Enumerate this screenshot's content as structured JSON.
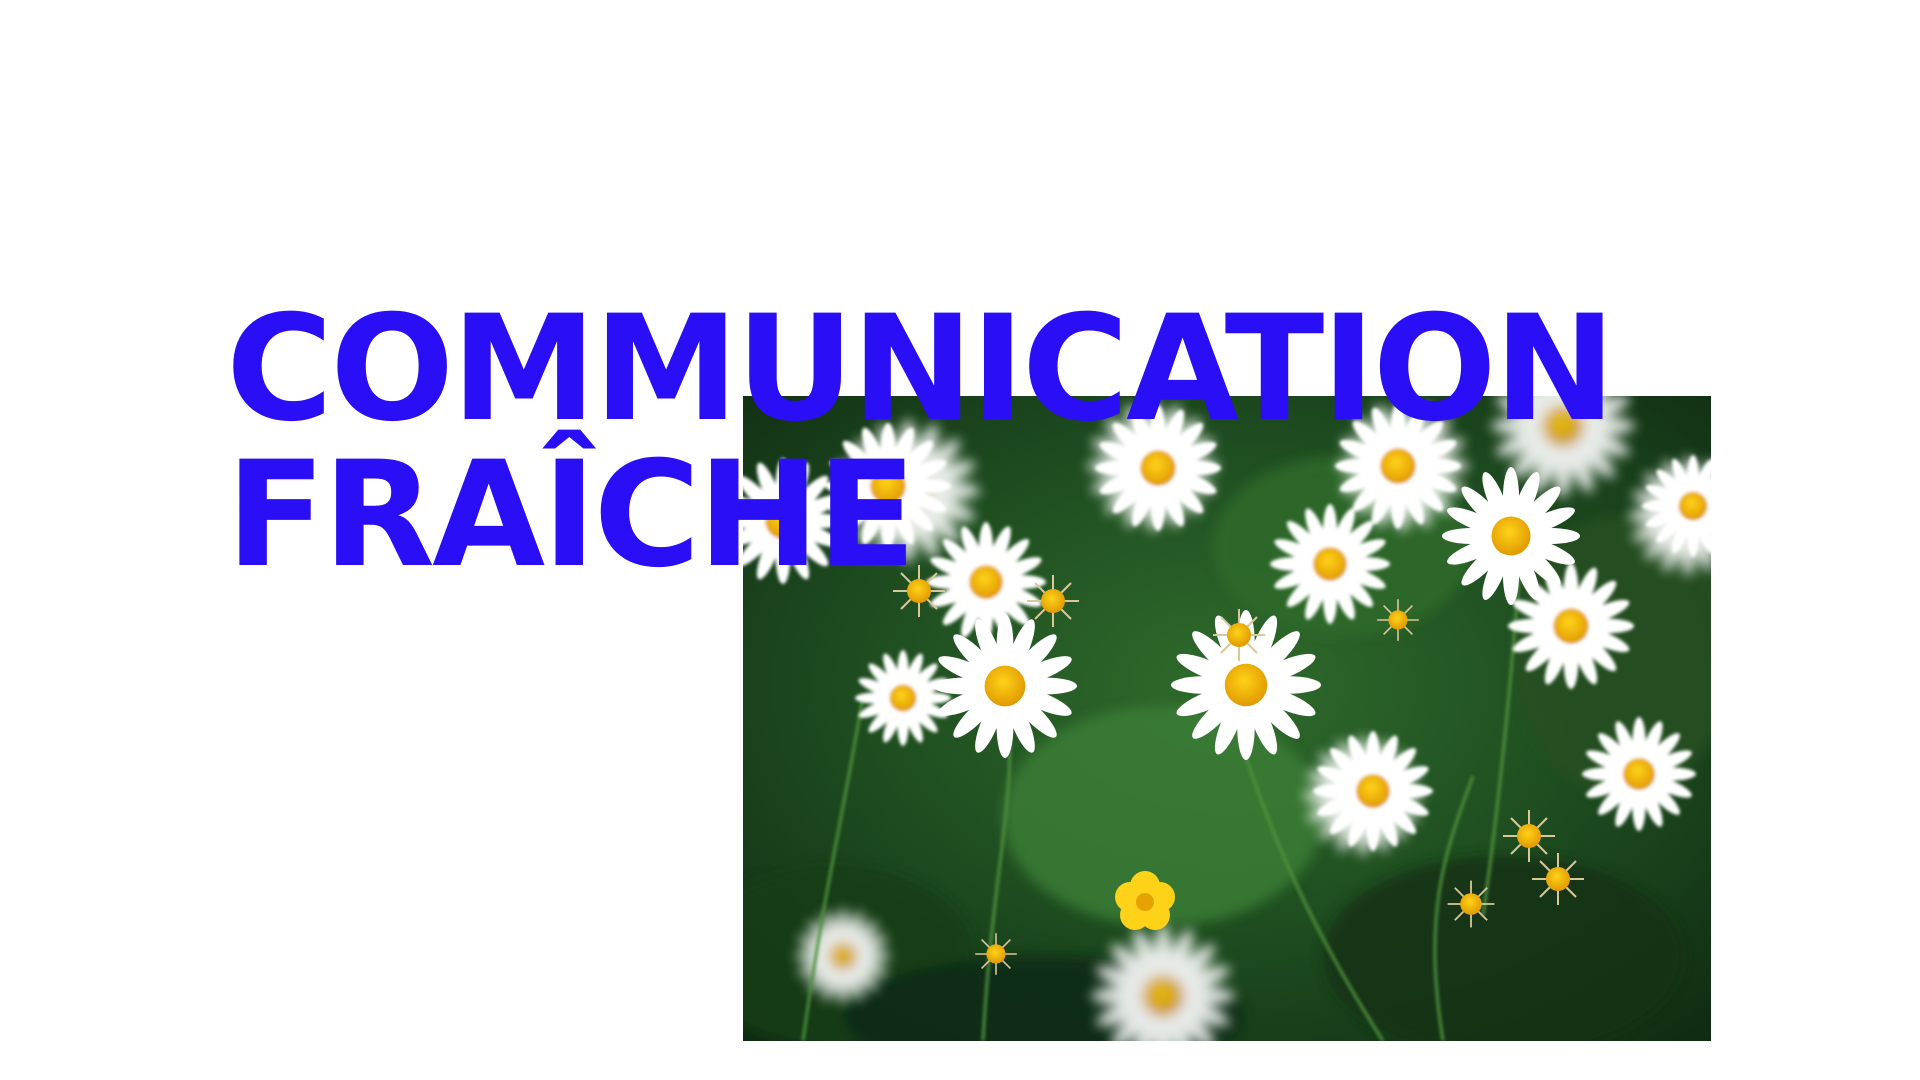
{
  "headline": {
    "line1": "COMMUNICATION",
    "line2": "FRAÎCHE"
  },
  "colors": {
    "background": "#ffffff",
    "headline": "#2a0ef5",
    "foliage": "#1f4a22",
    "petal": "#ffffff",
    "flower_center": "#f5b800"
  },
  "photo": {
    "subject": "daisy-field-photo"
  }
}
